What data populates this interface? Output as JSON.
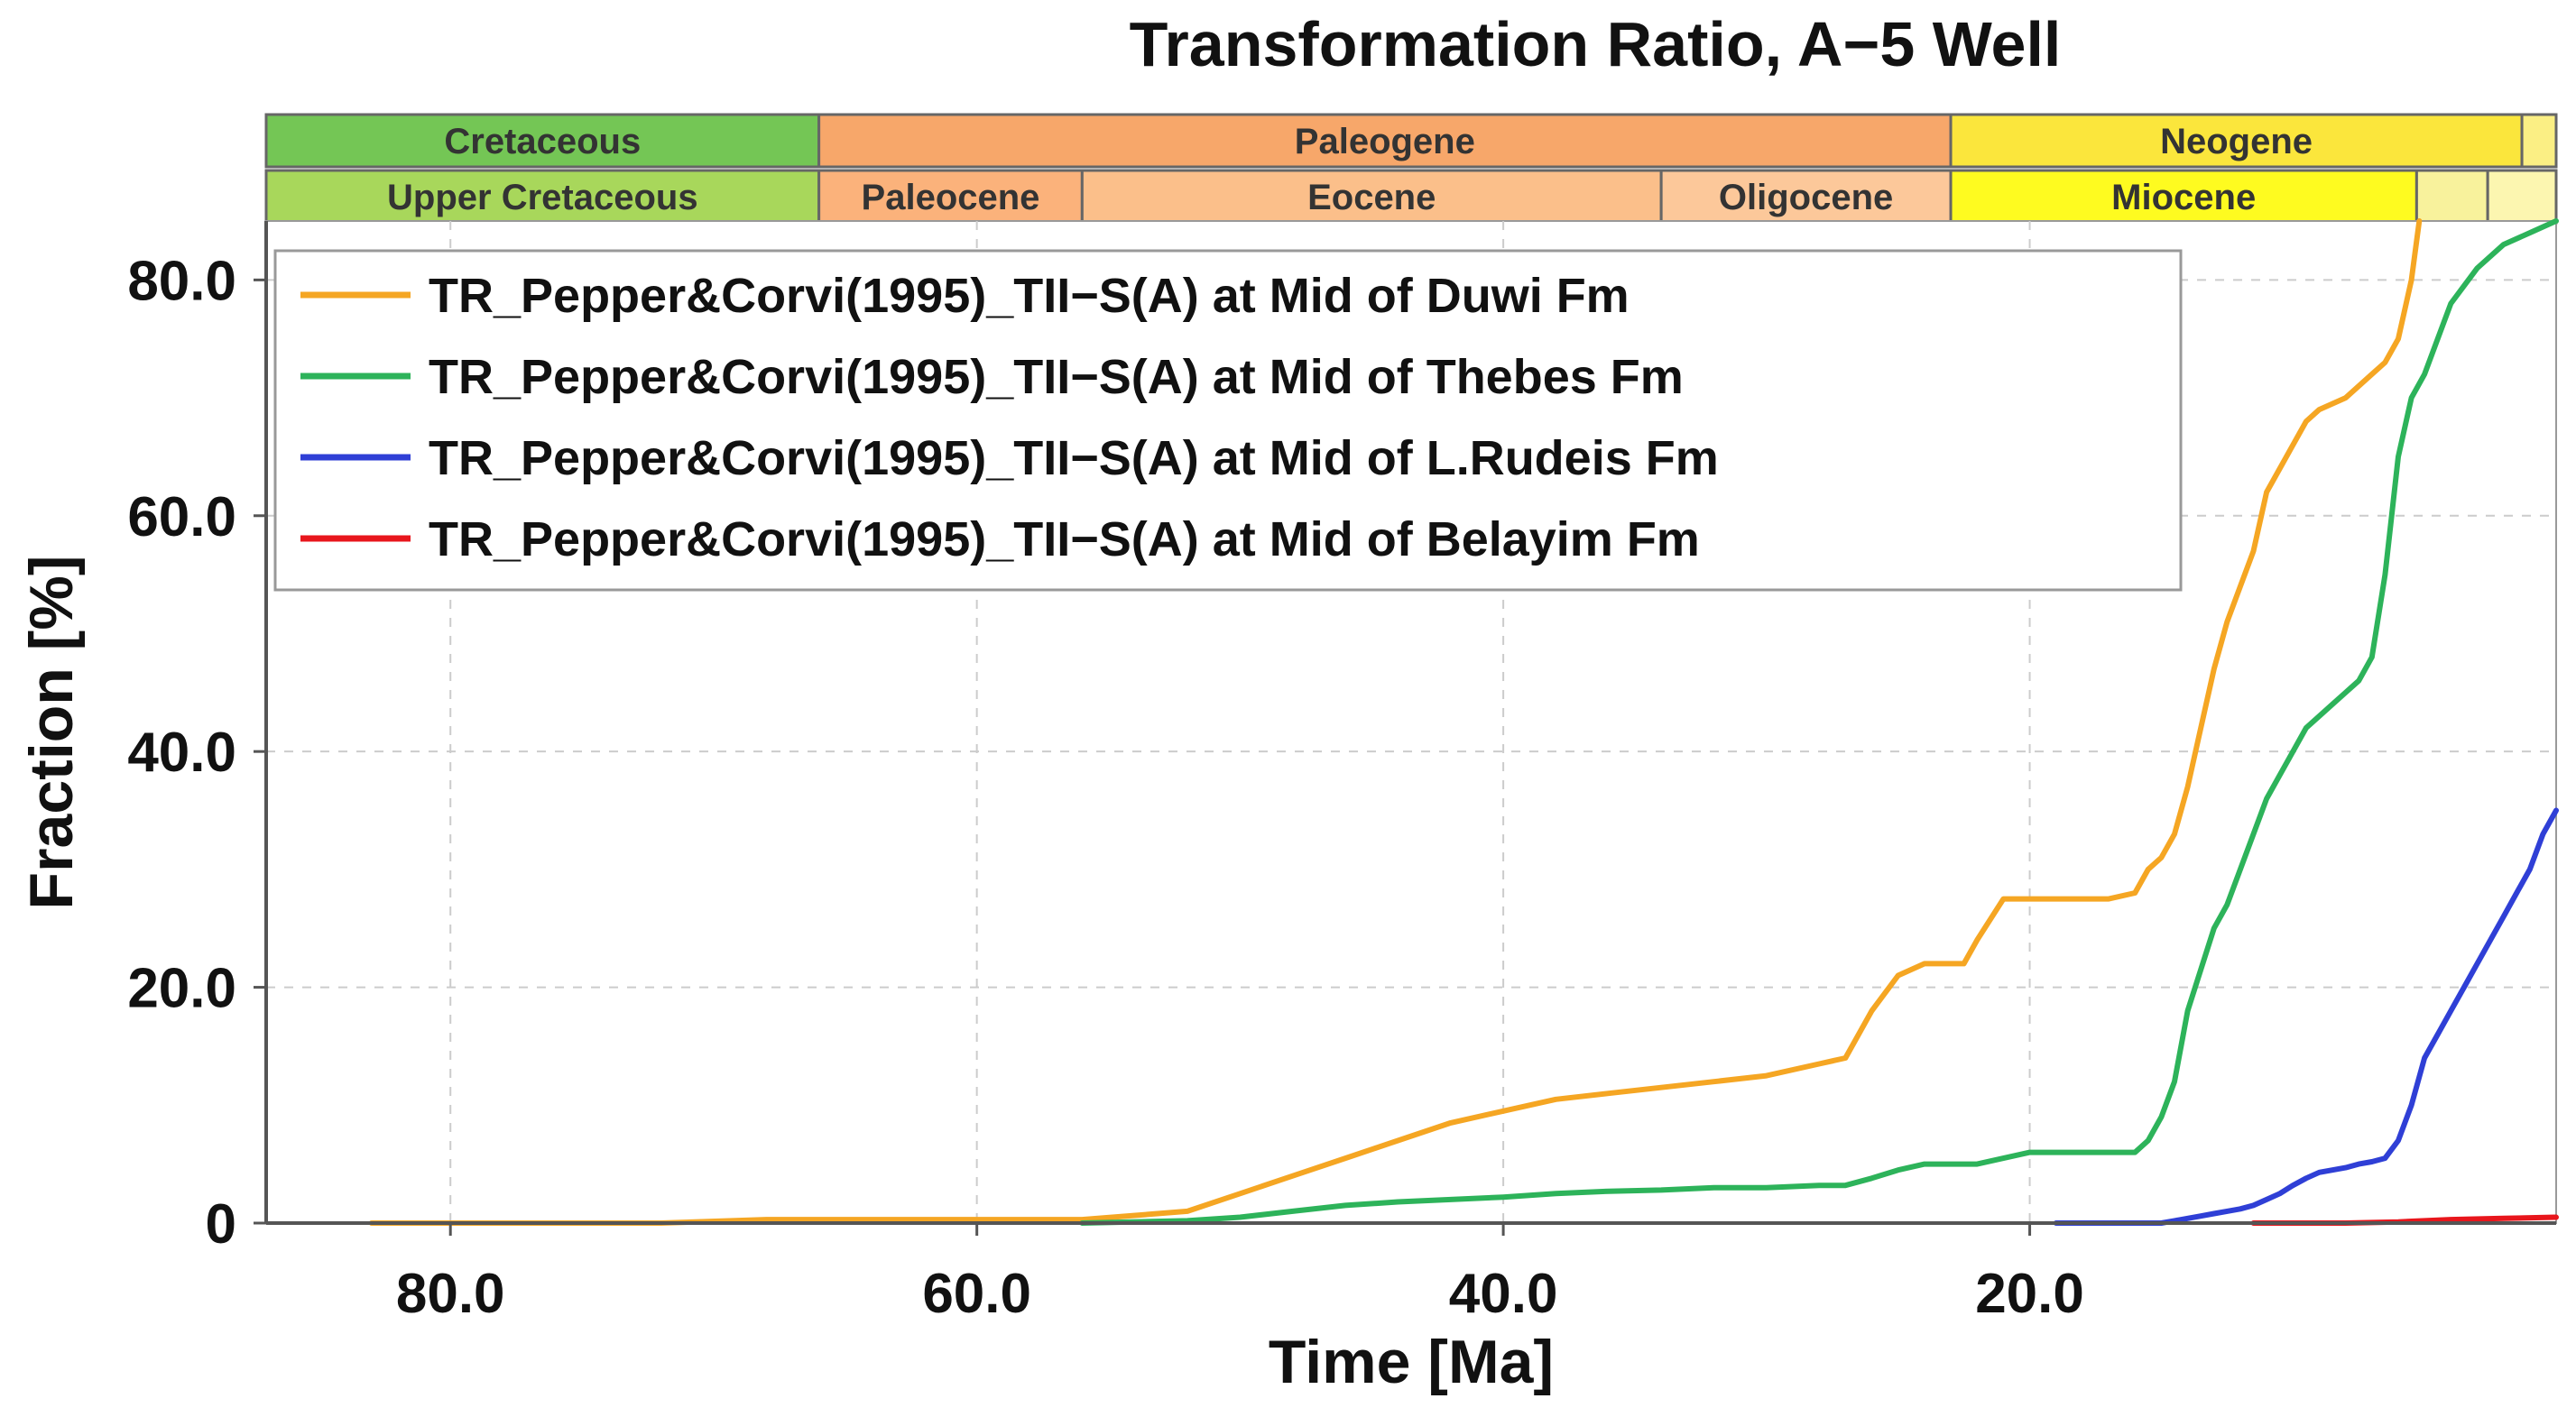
{
  "chart_data": {
    "type": "line",
    "title": "Transformation Ratio, A−5 Well",
    "xlabel": "Time [Ma]",
    "ylabel": "Fraction [%]",
    "xlim": [
      87,
      0
    ],
    "ylim": [
      0,
      85
    ],
    "x_ticks": [
      {
        "value": 80,
        "label": "80.0"
      },
      {
        "value": 60,
        "label": "60.0"
      },
      {
        "value": 40,
        "label": "40.0"
      },
      {
        "value": 20,
        "label": "20.0"
      }
    ],
    "y_ticks": [
      {
        "value": 0,
        "label": "0"
      },
      {
        "value": 20,
        "label": "20.0"
      },
      {
        "value": 40,
        "label": "40.0"
      },
      {
        "value": 60,
        "label": "60.0"
      },
      {
        "value": 80,
        "label": "80.0"
      }
    ],
    "grid": true,
    "legend_position": "top-left",
    "geologic_periods": [
      {
        "label": "Cretaceous",
        "start": 87,
        "end": 66,
        "color": "#74c655"
      },
      {
        "label": "Paleogene",
        "start": 66,
        "end": 23,
        "color": "#f7a76a"
      },
      {
        "label": "Neogene",
        "start": 23,
        "end": 1.3,
        "color": "#fbe63c"
      },
      {
        "label": "",
        "start": 1.3,
        "end": 0,
        "color": "#fbef84"
      }
    ],
    "geologic_epochs": [
      {
        "label": "Upper Cretaceous",
        "start": 87,
        "end": 66,
        "color": "#a8d75b"
      },
      {
        "label": "Paleocene",
        "start": 66,
        "end": 56,
        "color": "#fbb27b"
      },
      {
        "label": "Eocene",
        "start": 56,
        "end": 34,
        "color": "#fbbf8a"
      },
      {
        "label": "Oligocene",
        "start": 34,
        "end": 23,
        "color": "#fcc89a"
      },
      {
        "label": "Miocene",
        "start": 23,
        "end": 5.3,
        "color": "#fefb20"
      },
      {
        "label": "",
        "start": 5.3,
        "end": 2.6,
        "color": "#f8f29c"
      },
      {
        "label": "",
        "start": 2.6,
        "end": 0,
        "color": "#fcf6b0"
      }
    ],
    "series": [
      {
        "name": "TR_Pepper&Corvi(1995)_TII−S(A) at Mid of Duwi Fm",
        "color": "#f5a623",
        "x": [
          83,
          78,
          72,
          68,
          62,
          56,
          52,
          50,
          48,
          46,
          44,
          42,
          40,
          38,
          36,
          34,
          32,
          30,
          28,
          27,
          26,
          25,
          24,
          23,
          22.5,
          22,
          21,
          20,
          19,
          18,
          17,
          16,
          15.5,
          15,
          14.5,
          14,
          13.5,
          13,
          12.5,
          12,
          11.5,
          11,
          10.5,
          10,
          9.5,
          9,
          8.5,
          8,
          7.5,
          7,
          6.5,
          6,
          5.5,
          5.2
        ],
        "y": [
          0,
          0,
          0,
          0.3,
          0.3,
          0.3,
          1,
          2.5,
          4,
          5.5,
          7,
          8.5,
          9.5,
          10.5,
          11,
          11.5,
          12,
          12.5,
          13.5,
          14,
          18,
          21,
          22,
          22,
          22,
          24,
          27.5,
          27.5,
          27.5,
          27.5,
          27.5,
          28,
          30,
          31,
          33,
          37,
          42,
          47,
          51,
          54,
          57,
          62,
          64,
          66,
          68,
          69,
          69.5,
          70,
          71,
          72,
          73,
          75,
          80,
          85
        ]
      },
      {
        "name": "TR_Pepper&Corvi(1995)_TII−S(A) at Mid of Thebes Fm",
        "color": "#2db35a",
        "x": [
          56,
          52,
          50,
          48,
          46,
          44,
          42,
          40,
          38,
          36,
          34,
          32,
          30,
          28,
          27,
          26,
          25,
          24,
          22,
          21,
          20,
          19,
          18,
          17,
          16.5,
          16,
          15.5,
          15,
          14.5,
          14,
          13,
          12.5,
          12,
          11,
          10.5,
          10,
          9.5,
          9,
          8.5,
          8,
          7.5,
          7,
          6.5,
          6,
          5.5,
          5,
          4.5,
          4,
          3,
          2,
          1,
          0
        ],
        "y": [
          0,
          0.2,
          0.5,
          1,
          1.5,
          1.8,
          2,
          2.2,
          2.5,
          2.7,
          2.8,
          3,
          3,
          3.2,
          3.2,
          3.8,
          4.5,
          5,
          5,
          5.5,
          6,
          6,
          6,
          6,
          6,
          6,
          7,
          9,
          12,
          18,
          25,
          27,
          30,
          36,
          38,
          40,
          42,
          43,
          44,
          45,
          46,
          48,
          55,
          65,
          70,
          72,
          75,
          78,
          81,
          83,
          84,
          85
        ]
      },
      {
        "name": "TR_Pepper&Corvi(1995)_TII−S(A) at Mid of L.Rudeis Fm",
        "color": "#2f3fd6",
        "x": [
          19,
          18,
          17,
          16,
          15,
          14.5,
          14,
          13.5,
          13,
          12.5,
          12,
          11.5,
          11,
          10.5,
          10,
          9.5,
          9,
          8.5,
          8,
          7.5,
          7,
          6.5,
          6,
          5.5,
          5,
          4.5,
          4,
          3.5,
          3,
          2.5,
          2,
          1.5,
          1,
          0.5,
          0
        ],
        "y": [
          0,
          0,
          0,
          0,
          0,
          0.2,
          0.4,
          0.6,
          0.8,
          1,
          1.2,
          1.5,
          2,
          2.5,
          3.2,
          3.8,
          4.3,
          4.5,
          4.7,
          5,
          5.2,
          5.5,
          7,
          10,
          14,
          16,
          18,
          20,
          22,
          24,
          26,
          28,
          30,
          33,
          35
        ]
      },
      {
        "name": "TR_Pepper&Corvi(1995)_TII−S(A) at Mid of Belayim Fm",
        "color": "#e8161c",
        "x": [
          11.5,
          10,
          8,
          6,
          4,
          2,
          0
        ],
        "y": [
          0,
          0,
          0,
          0.1,
          0.3,
          0.4,
          0.5
        ]
      }
    ]
  }
}
